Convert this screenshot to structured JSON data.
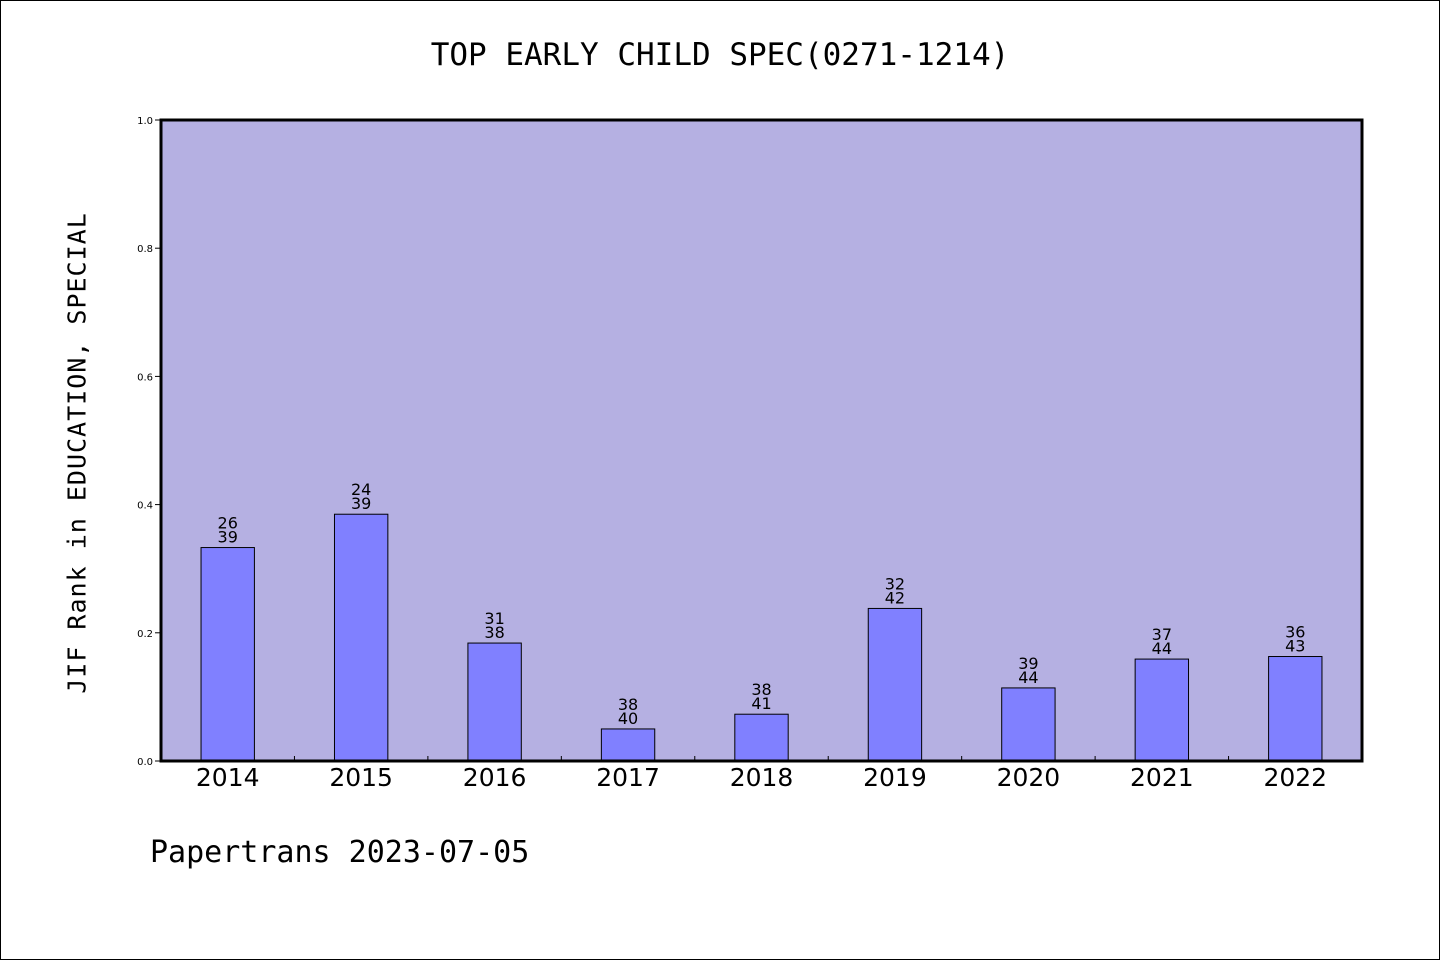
{
  "chart_data": {
    "type": "bar",
    "title": "TOP EARLY CHILD SPEC(0271-1214)",
    "ylabel": "JIF Rank in EDUCATION, SPECIAL",
    "xlabel": "",
    "ylim": [
      0,
      1.0
    ],
    "yticks": [
      "0.0",
      "0.2",
      "0.4",
      "0.6",
      "0.8",
      "1.0"
    ],
    "categories": [
      "2014",
      "2015",
      "2016",
      "2017",
      "2018",
      "2019",
      "2020",
      "2021",
      "2022"
    ],
    "values": [
      0.333,
      0.385,
      0.184,
      0.05,
      0.073,
      0.238,
      0.114,
      0.159,
      0.163
    ],
    "ranks": [
      "26",
      "24",
      "31",
      "38",
      "38",
      "32",
      "39",
      "37",
      "36"
    ],
    "totals": [
      "39",
      "39",
      "38",
      "40",
      "41",
      "42",
      "44",
      "44",
      "43"
    ],
    "grid": false,
    "legend": "none",
    "colors": {
      "plot_background": "#b5b0e2",
      "bar_fill": "#8080ff",
      "bar_stroke": "#000000"
    }
  },
  "footer": "Papertrans 2023-07-05"
}
